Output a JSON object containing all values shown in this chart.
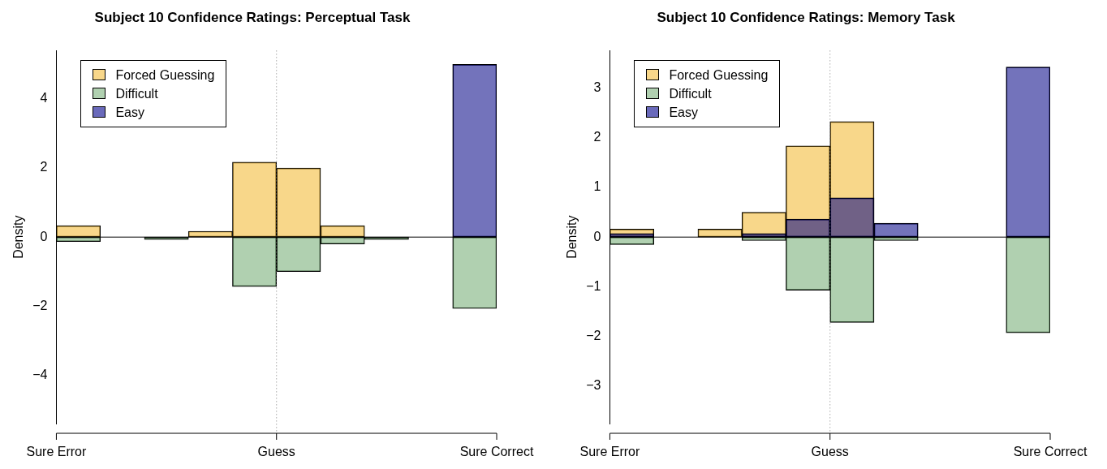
{
  "chart_data": [
    {
      "type": "bar",
      "title": "Subject 10 Confidence Ratings: Perceptual Task",
      "ylabel": "Density",
      "categories": [
        null,
        null,
        null,
        null,
        null,
        null,
        null,
        null,
        null,
        null
      ],
      "series": [
        {
          "name": "Forced Guessing",
          "color": "#f8d78a",
          "values": [
            0.33,
            0,
            0,
            0.17,
            2.17,
            2.0,
            0.33,
            0,
            0,
            0
          ]
        },
        {
          "name": "Difficult",
          "color": "#b0d0b0",
          "values": [
            -0.13,
            0,
            -0.07,
            0,
            -1.43,
            -1.0,
            -0.2,
            -0.07,
            0,
            -2.07
          ]
        },
        {
          "name": "Easy",
          "color": "#6a6abb",
          "values": [
            0,
            0,
            0,
            0,
            0,
            0,
            0,
            0,
            0,
            5.0
          ]
        }
      ],
      "annotations": [
        "Sure Error",
        "Sure Correct"
      ],
      "ylim": [
        -5.4,
        5.4
      ],
      "yticks": [
        -4,
        -2,
        0,
        2,
        4
      ],
      "ref_lines": [
        {
          "axis": "x",
          "label": "Guess",
          "color": "#808080",
          "line_style": "dotted"
        },
        {
          "axis": "y",
          "value": 0,
          "color": "#000000",
          "line_style": "solid"
        }
      ],
      "legend": "top left"
    },
    {
      "type": "bar",
      "title": "Subject 10 Confidence Ratings: Memory Task",
      "ylabel": "Density",
      "categories": [
        null,
        null,
        null,
        null,
        null,
        null,
        null,
        null,
        null,
        null
      ],
      "series": [
        {
          "name": "Forced Guessing",
          "color": "#f8d78a",
          "values": [
            0.16,
            0,
            0.16,
            0.5,
            1.84,
            2.33,
            0,
            0,
            0,
            0
          ]
        },
        {
          "name": "Difficult",
          "color": "#b0d0b0",
          "values": [
            -0.15,
            0,
            0,
            -0.07,
            -1.07,
            -1.72,
            -0.07,
            0,
            0,
            -1.93
          ]
        },
        {
          "name": "Easy",
          "color": "#6a6abb",
          "values": [
            0.07,
            0,
            0,
            0.07,
            0.36,
            0.79,
            0.28,
            0,
            0,
            3.43
          ]
        }
      ],
      "annotations": [
        "Sure Error",
        "Sure Correct"
      ],
      "ylim": [
        -3.76,
        3.76
      ],
      "yticks": [
        -3,
        -2,
        -1,
        0,
        1,
        2,
        3
      ],
      "ref_lines": [
        {
          "axis": "x",
          "label": "Guess",
          "color": "#808080",
          "line_style": "dotted"
        },
        {
          "axis": "y",
          "value": 0,
          "color": "#000000",
          "line_style": "solid"
        }
      ],
      "legend": "top left"
    }
  ]
}
